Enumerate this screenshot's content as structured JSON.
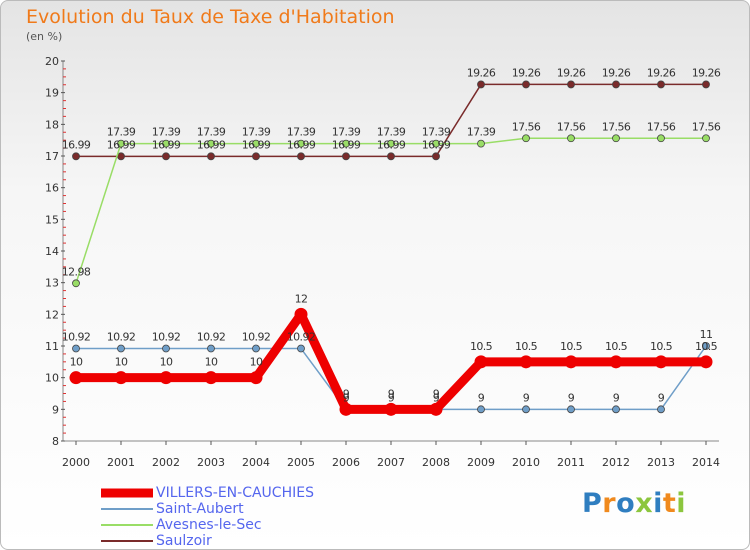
{
  "header": {
    "title": "Evolution du Taux de Taxe d'Habitation",
    "subtitle": "(en %)"
  },
  "chart_data": {
    "type": "line",
    "title": "Evolution du Taux de Taxe d'Habitation",
    "ylabel": "(en %)",
    "xlabel": "",
    "categories": [
      "2000",
      "2001",
      "2002",
      "2003",
      "2004",
      "2005",
      "2006",
      "2007",
      "2008",
      "2009",
      "2010",
      "2011",
      "2012",
      "2013",
      "2014"
    ],
    "yticks": [
      8,
      9,
      10,
      11,
      12,
      13,
      14,
      15,
      16,
      17,
      18,
      19,
      20
    ],
    "ylim": [
      8,
      20
    ],
    "grid": false,
    "legend_position": "bottom-left",
    "series": [
      {
        "name": "VILLERS-EN-CAUCHIES",
        "color": "#ee0000",
        "labels": [
          "10",
          "10",
          "10",
          "10",
          "10",
          "12",
          "9",
          "9",
          "9",
          "10.5",
          "10.5",
          "10.5",
          "10.5",
          "10.5",
          "10.5"
        ],
        "values": [
          10,
          10,
          10,
          10,
          10,
          12,
          9,
          9,
          9,
          10.5,
          10.5,
          10.5,
          10.5,
          10.5,
          10.5
        ]
      },
      {
        "name": "Saint-Aubert",
        "color": "#6f9ec8",
        "labels": [
          "10.92",
          "10.92",
          "10.92",
          "10.92",
          "10.92",
          "10.92",
          "9",
          "9",
          "9",
          "9",
          "9",
          "9",
          "9",
          "9",
          "11"
        ],
        "values": [
          10.92,
          10.92,
          10.92,
          10.92,
          10.92,
          10.92,
          9,
          9,
          9,
          9,
          9,
          9,
          9,
          9,
          11
        ]
      },
      {
        "name": "Avesnes-le-Sec",
        "color": "#99dd66",
        "labels": [
          "12.98",
          "17.39",
          "17.39",
          "17.39",
          "17.39",
          "17.39",
          "17.39",
          "17.39",
          "17.39",
          "17.39",
          "17.56",
          "17.56",
          "17.56",
          "17.56",
          "17.56"
        ],
        "values": [
          12.98,
          17.39,
          17.39,
          17.39,
          17.39,
          17.39,
          17.39,
          17.39,
          17.39,
          17.39,
          17.56,
          17.56,
          17.56,
          17.56,
          17.56
        ]
      },
      {
        "name": "Saulzoir",
        "color": "#7a2b2b",
        "labels": [
          "16.99",
          "16.99",
          "16.99",
          "16.99",
          "16.99",
          "16.99",
          "16.99",
          "16.99",
          "16.99",
          "19.26",
          "19.26",
          "19.26",
          "19.26",
          "19.26",
          "19.26"
        ],
        "values": [
          16.99,
          16.99,
          16.99,
          16.99,
          16.99,
          16.99,
          16.99,
          16.99,
          16.99,
          19.26,
          19.26,
          19.26,
          19.26,
          19.26,
          19.26
        ]
      }
    ]
  },
  "legend": {
    "items": [
      {
        "label": "VILLERS-EN-CAUCHIES",
        "color": "#ee0000"
      },
      {
        "label": "Saint-Aubert",
        "color": "#6f9ec8"
      },
      {
        "label": "Avesnes-le-Sec",
        "color": "#99dd66"
      },
      {
        "label": "Saulzoir",
        "color": "#7a2b2b"
      }
    ]
  },
  "logo": {
    "text": "Proxiti",
    "colors": [
      "#2f7ec0",
      "#f08a1e",
      "#2f7ec0",
      "#8cc63e",
      "#2f7ec0",
      "#f08a1e",
      "#8cc63e"
    ]
  }
}
